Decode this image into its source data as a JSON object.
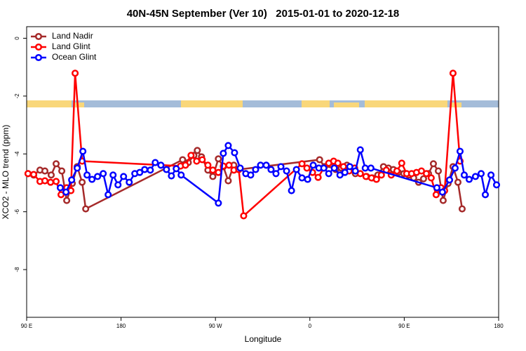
{
  "chart_data": {
    "type": "line",
    "title": "40N-45N September (Ver 10)   2015-01-01 to 2020-12-18",
    "x_label": "Longitude",
    "y_label": "XCO2 - MLO trend (ppm)",
    "xlim": [
      90,
      540
    ],
    "xticks": [
      {
        "value": 90,
        "label": "90 E"
      },
      180,
      {
        "value": 270,
        "label": "90 W"
      },
      {
        "value": 360,
        "label": "0"
      },
      {
        "value": 450,
        "label": "90 E"
      },
      {
        "value": 540,
        "label": "180"
      }
    ],
    "ylim": [
      -9.65,
      0.4
    ],
    "yticks": [
      0,
      -2,
      -4,
      -6,
      -8
    ],
    "legend": "top-left",
    "series": [
      {
        "name": "Land Nadir",
        "color": "#a52a2a",
        "x": [
          91.3,
          96.7,
          102.7,
          107.4,
          113.4,
          118.1,
          123.5,
          128.2,
          133.5,
          138.2,
          142.9,
          146.3,
          238.7,
          244.1,
          249.4,
          252.7,
          256.7,
          262.8,
          267.5,
          272.8,
          277.5,
          282.2,
          287.5,
          292.2,
          369.3,
          374,
          379.3,
          384.7,
          390,
          395.4,
          403.4,
          414.1,
          419.5,
          424.8,
          430.2,
          434.9,
          439.6,
          444.3,
          449.6,
          454.3,
          459,
          463.7,
          468.4,
          473.1,
          477.8,
          482.5,
          487.1,
          491.8,
          496.5,
          501.2,
          505.2
        ],
        "values": [
          -4.68,
          -4.73,
          -4.56,
          -4.59,
          -4.73,
          -4.34,
          -4.59,
          -5.61,
          -5.02,
          -4.44,
          -4.98,
          -5.9,
          -4.2,
          -4.3,
          -4.05,
          -3.88,
          -4.1,
          -4.56,
          -4.78,
          -4.17,
          -4.44,
          -4.93,
          -4.39,
          -4.54,
          -4.2,
          -4.44,
          -4.37,
          -4.54,
          -4.49,
          -4.39,
          -4.68,
          -4.78,
          -4.83,
          -4.73,
          -4.44,
          -4.49,
          -4.54,
          -4.64,
          -4.68,
          -4.73,
          -4.83,
          -4.98,
          -4.86,
          -4.68,
          -4.34,
          -4.59,
          -5.61,
          -5.02,
          -4.44,
          -4.98,
          -5.9
        ]
      },
      {
        "name": "Land Glint",
        "color": "#ff0000",
        "x": [
          91.3,
          96.7,
          102.7,
          107.4,
          112.8,
          118.1,
          122.8,
          128.2,
          132.2,
          136.2,
          142.9,
          236.7,
          241.4,
          246.7,
          252.1,
          257.4,
          262.8,
          267.5,
          272.8,
          277.5,
          282.9,
          287.6,
          292.2,
          296.9,
          352.5,
          357.2,
          362.6,
          367.9,
          373.3,
          378,
          382.7,
          386.7,
          392,
          397.4,
          402.7,
          408.1,
          413.5,
          418.8,
          423.5,
          428.2,
          432.9,
          437.6,
          443,
          447.6,
          452.3,
          457,
          461.7,
          466.4,
          471.1,
          475.7,
          480.4,
          485.1,
          488.5,
          496.5,
          503.2
        ],
        "values": [
          -4.68,
          -4.71,
          -4.95,
          -4.93,
          -4.98,
          -4.95,
          -5.41,
          -5.17,
          -5.27,
          -1.21,
          -4.25,
          -4.42,
          -4.39,
          -4.05,
          -4.25,
          -4.2,
          -4.39,
          -4.56,
          -4.64,
          -4.42,
          -4.39,
          -4.56,
          -4.54,
          -6.14,
          -4.34,
          -4.49,
          -4.64,
          -4.81,
          -4.49,
          -4.32,
          -4.25,
          -4.32,
          -4.44,
          -4.59,
          -4.49,
          -4.68,
          -4.78,
          -4.83,
          -4.88,
          -4.73,
          -4.56,
          -4.73,
          -4.59,
          -4.32,
          -4.68,
          -4.68,
          -4.64,
          -4.59,
          -4.68,
          -4.83,
          -5.41,
          -5.17,
          -5.27,
          -1.21,
          -4.25
        ]
      },
      {
        "name": "Ocean Glint",
        "color": "#0000ff",
        "x": [
          122.1,
          127.5,
          132.9,
          138.2,
          143.6,
          147.6,
          152.3,
          157.6,
          163,
          167.7,
          172.4,
          177.1,
          182.4,
          187.8,
          193.1,
          197.8,
          202.5,
          207.9,
          212.6,
          218,
          223.3,
          228,
          232.6,
          237.3,
          272.8,
          277.5,
          282.2,
          288.2,
          293.6,
          298.9,
          303.6,
          308.3,
          313,
          318.4,
          323,
          327.7,
          332.4,
          337.8,
          342.5,
          347.2,
          352.5,
          357.9,
          363.2,
          368.6,
          373.3,
          378,
          383.3,
          388.7,
          393.4,
          398.1,
          403.4,
          408.1,
          412.8,
          418.2,
          481.1,
          486.4,
          493.2,
          498.5,
          503.2,
          507.2,
          511.9,
          517.9,
          523.3,
          527.3,
          532.7,
          538
        ],
        "values": [
          -5.17,
          -5.32,
          -4.9,
          -4.49,
          -3.91,
          -4.73,
          -4.88,
          -4.78,
          -4.68,
          -5.41,
          -4.73,
          -5.07,
          -4.78,
          -4.98,
          -4.68,
          -4.64,
          -4.54,
          -4.56,
          -4.3,
          -4.39,
          -4.54,
          -4.76,
          -4.51,
          -4.73,
          -5.7,
          -3.98,
          -3.71,
          -3.96,
          -4.49,
          -4.68,
          -4.73,
          -4.54,
          -4.39,
          -4.39,
          -4.54,
          -4.68,
          -4.44,
          -4.59,
          -5.27,
          -4.54,
          -4.83,
          -4.88,
          -4.39,
          -4.49,
          -4.49,
          -4.68,
          -4.49,
          -4.73,
          -4.64,
          -4.44,
          -4.59,
          -3.86,
          -4.49,
          -4.49,
          -5.17,
          -5.32,
          -4.9,
          -4.49,
          -3.91,
          -4.73,
          -4.88,
          -4.78,
          -4.68,
          -5.41,
          -4.73,
          -5.07
        ]
      }
    ]
  }
}
